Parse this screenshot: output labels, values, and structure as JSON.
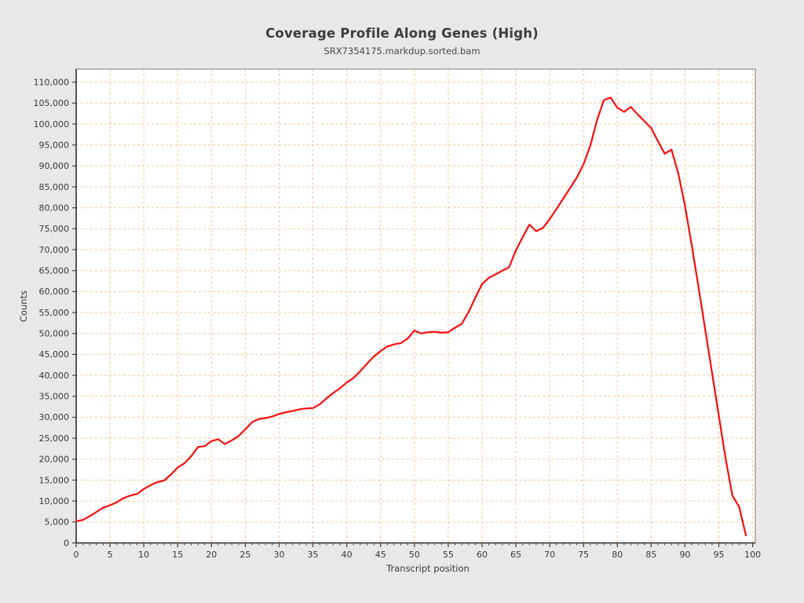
{
  "title": "Coverage Profile Along Genes (High)",
  "subtitle": "SRX7354175.markdup.sorted.bam",
  "colors": {
    "page_background": "#e8e8e8",
    "plot_background": "#ffffff",
    "grid": "#f6c795",
    "frame": "#919191",
    "axis": "#454545",
    "tick_text": "#3a3a3a",
    "line": "#fb0d0d"
  },
  "chart_data": {
    "type": "line",
    "title": "Coverage Profile Along Genes (High)",
    "subtitle": "SRX7354175.markdup.sorted.bam",
    "xlabel": "Transcript position",
    "ylabel": "Counts",
    "xlim": [
      0,
      100
    ],
    "ylim": [
      0,
      110000
    ],
    "x_major_tick_step": 5,
    "x_minor_tick_step": 1,
    "y_tick_step": 5000,
    "grid": {
      "style": "dashed",
      "color": "#f6c795",
      "vertical": true,
      "horizontal": true
    },
    "legend_position": "none",
    "series": [
      {
        "name": "SRX7354175.markdup.sorted.bam",
        "color": "#fb0d0d",
        "x": [
          0,
          1,
          2,
          3,
          4,
          5,
          6,
          7,
          8,
          9,
          10,
          11,
          12,
          13,
          14,
          15,
          16,
          17,
          18,
          19,
          20,
          21,
          22,
          23,
          24,
          25,
          26,
          27,
          28,
          29,
          30,
          31,
          32,
          33,
          34,
          35,
          36,
          37,
          38,
          39,
          40,
          41,
          42,
          43,
          44,
          45,
          46,
          47,
          48,
          49,
          50,
          51,
          52,
          53,
          54,
          55,
          56,
          57,
          58,
          59,
          60,
          61,
          62,
          63,
          64,
          65,
          66,
          67,
          68,
          69,
          70,
          71,
          72,
          73,
          74,
          75,
          76,
          77,
          78,
          79,
          80,
          81,
          82,
          83,
          84,
          85,
          86,
          87,
          88,
          89,
          90,
          91,
          92,
          93,
          94,
          95,
          96,
          97,
          98,
          99
        ],
        "values": [
          5200,
          5500,
          6400,
          7400,
          8400,
          9000,
          9700,
          10700,
          11300,
          11700,
          12900,
          13800,
          14500,
          14900,
          16300,
          18000,
          19000,
          20700,
          22900,
          23100,
          24300,
          24750,
          23600,
          24500,
          25500,
          27100,
          28800,
          29600,
          29800,
          30200,
          30800,
          31200,
          31500,
          31900,
          32100,
          32200,
          33100,
          34500,
          35800,
          36900,
          38300,
          39400,
          41000,
          42800,
          44500,
          45800,
          46900,
          47400,
          47700,
          48800,
          50700,
          50000,
          50300,
          50400,
          50200,
          50300,
          51400,
          52300,
          55100,
          58500,
          61800,
          63300,
          64100,
          65000,
          65800,
          69800,
          73000,
          76000,
          74400,
          75200,
          77300,
          79700,
          82200,
          84700,
          87200,
          90400,
          94800,
          100900,
          105700,
          106300,
          103900,
          102900,
          104100,
          102300,
          100700,
          99000,
          95900,
          92900,
          93900,
          88300,
          80500,
          71000,
          61000,
          50800,
          40600,
          30400,
          20200,
          11300,
          8600,
          1800
        ]
      }
    ]
  }
}
